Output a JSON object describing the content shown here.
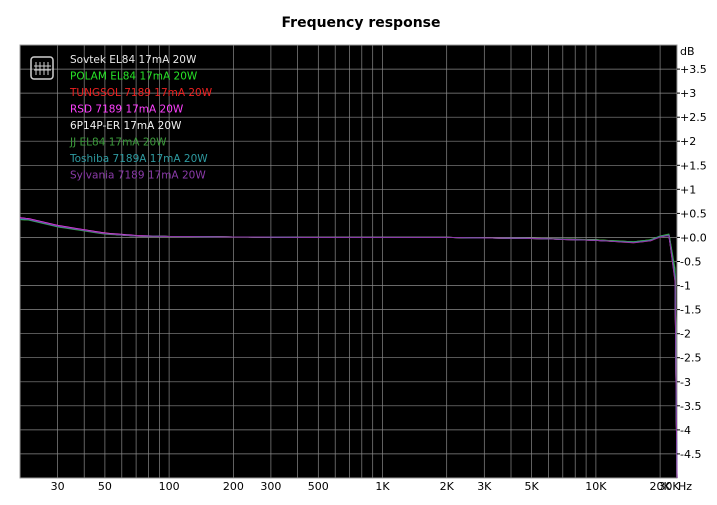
{
  "chart_data": {
    "type": "line",
    "title": "Frequency response",
    "xunit": "Hz",
    "yunit": "dB",
    "xscale": "log",
    "xlim": [
      20,
      24000
    ],
    "ylim": [
      -5,
      4
    ],
    "grid": true,
    "background": "#000000",
    "grid_color": "#8a8a8a",
    "legend_position": "top-left",
    "legend_icon": "spectrum-icon",
    "xticks": [
      {
        "value": 30,
        "label": "30"
      },
      {
        "value": 50,
        "label": "50"
      },
      {
        "value": 100,
        "label": "100"
      },
      {
        "value": 200,
        "label": "200"
      },
      {
        "value": 300,
        "label": "300"
      },
      {
        "value": 500,
        "label": "500"
      },
      {
        "value": 1000,
        "label": "1K"
      },
      {
        "value": 2000,
        "label": "2K"
      },
      {
        "value": 3000,
        "label": "3K"
      },
      {
        "value": 5000,
        "label": "5K"
      },
      {
        "value": 10000,
        "label": "10K"
      },
      {
        "value": 20000,
        "label": "20K"
      },
      {
        "value": 30000,
        "label": "30K"
      }
    ],
    "yticks": [
      {
        "value": 3.5,
        "label": "+3.5"
      },
      {
        "value": 3,
        "label": "+3"
      },
      {
        "value": 2.5,
        "label": "+2.5"
      },
      {
        "value": 2,
        "label": "+2"
      },
      {
        "value": 1.5,
        "label": "+1.5"
      },
      {
        "value": 1,
        "label": "+1"
      },
      {
        "value": 0.5,
        "label": "+0.5"
      },
      {
        "value": 0,
        "label": "+0.0"
      },
      {
        "value": -0.5,
        "label": "-0.5"
      },
      {
        "value": -1,
        "label": "-1"
      },
      {
        "value": -1.5,
        "label": "-1.5"
      },
      {
        "value": -2,
        "label": "-2"
      },
      {
        "value": -2.5,
        "label": "-2.5"
      },
      {
        "value": -3,
        "label": "-3"
      },
      {
        "value": -3.5,
        "label": "-3.5"
      },
      {
        "value": -4,
        "label": "-4"
      },
      {
        "value": -4.5,
        "label": "-4.5"
      }
    ],
    "series": [
      {
        "name": "Sovtek EL84 17mA 20W",
        "color": "#e8e8e8",
        "x": [
          20,
          22,
          30,
          50,
          70,
          100,
          200,
          500,
          1000,
          2000,
          3000,
          5000,
          10000,
          15000,
          18000,
          20000,
          22000,
          23500,
          24000
        ],
        "y": [
          0.4,
          0.38,
          0.24,
          0.08,
          0.03,
          0.02,
          0.01,
          0.0,
          0.0,
          0.0,
          -0.01,
          -0.02,
          -0.06,
          -0.1,
          -0.06,
          0.02,
          0.05,
          -0.8,
          -5.0
        ]
      },
      {
        "name": "POLAM EL84 17mA 20W",
        "color": "#27e427",
        "x": [
          20,
          22,
          30,
          50,
          70,
          100,
          200,
          500,
          1000,
          2000,
          3000,
          5000,
          10000,
          15000,
          18000,
          20000,
          22000,
          23500,
          24000
        ],
        "y": [
          0.38,
          0.37,
          0.23,
          0.08,
          0.03,
          0.02,
          0.01,
          0.0,
          0.0,
          0.0,
          -0.01,
          -0.02,
          -0.05,
          -0.09,
          -0.05,
          0.02,
          0.06,
          -0.7,
          -5.0
        ]
      },
      {
        "name": "TUNGSOL 7189 17mA 20W",
        "color": "#ee2020",
        "x": [
          20,
          22,
          30,
          50,
          70,
          100,
          200,
          500,
          1000,
          2000,
          3000,
          5000,
          10000,
          15000,
          18000,
          20000,
          22000,
          23500,
          24000
        ],
        "y": [
          0.39,
          0.38,
          0.24,
          0.09,
          0.03,
          0.02,
          0.01,
          0.0,
          0.0,
          0.0,
          -0.01,
          -0.02,
          -0.06,
          -0.11,
          -0.07,
          0.01,
          0.05,
          -0.9,
          -5.0
        ]
      },
      {
        "name": "RSD 7189 17mA 20W",
        "color": "#ff40ff",
        "x": [
          20,
          22,
          30,
          50,
          70,
          100,
          200,
          500,
          1000,
          2000,
          3000,
          5000,
          10000,
          15000,
          18000,
          20000,
          22000,
          23500,
          24000
        ],
        "y": [
          0.41,
          0.39,
          0.25,
          0.09,
          0.04,
          0.02,
          0.01,
          0.0,
          0.0,
          0.0,
          -0.01,
          -0.02,
          -0.06,
          -0.1,
          -0.06,
          0.02,
          0.04,
          -0.85,
          -5.0
        ]
      },
      {
        "name": "6P14P-ER 17mA 20W",
        "color": "#f2f2f2",
        "x": [
          20,
          22,
          30,
          50,
          70,
          100,
          200,
          500,
          1000,
          2000,
          3000,
          5000,
          10000,
          15000,
          18000,
          20000,
          22000,
          23500,
          24000
        ],
        "y": [
          0.39,
          0.37,
          0.23,
          0.08,
          0.03,
          0.02,
          0.01,
          0.0,
          0.0,
          0.0,
          -0.01,
          -0.02,
          -0.05,
          -0.1,
          -0.06,
          0.02,
          0.06,
          -0.75,
          -5.0
        ]
      },
      {
        "name": "JJ EL84 17mA 20W",
        "color": "#3a9a3a",
        "x": [
          20,
          22,
          30,
          50,
          70,
          100,
          200,
          500,
          1000,
          2000,
          3000,
          5000,
          10000,
          15000,
          18000,
          20000,
          22000,
          23500,
          24000
        ],
        "y": [
          0.37,
          0.36,
          0.22,
          0.07,
          0.03,
          0.02,
          0.01,
          0.0,
          0.0,
          0.0,
          -0.01,
          -0.02,
          -0.05,
          -0.09,
          -0.05,
          0.03,
          0.07,
          -0.65,
          -5.0
        ]
      },
      {
        "name": "Toshiba 7189A 17mA 20W",
        "color": "#2e9aa0",
        "x": [
          20,
          22,
          30,
          50,
          70,
          100,
          200,
          500,
          1000,
          2000,
          3000,
          5000,
          10000,
          15000,
          18000,
          20000,
          22000,
          23500,
          24000
        ],
        "y": [
          0.38,
          0.37,
          0.23,
          0.08,
          0.03,
          0.02,
          0.01,
          0.0,
          0.0,
          0.0,
          -0.01,
          -0.02,
          -0.06,
          -0.1,
          -0.06,
          0.02,
          0.05,
          -0.8,
          -5.0
        ]
      },
      {
        "name": "Sylvania 7189 17mA 20W",
        "color": "#8a3aa8",
        "x": [
          20,
          22,
          30,
          50,
          70,
          100,
          200,
          500,
          1000,
          2000,
          3000,
          5000,
          10000,
          15000,
          18000,
          20000,
          22000,
          23500,
          24000
        ],
        "y": [
          0.4,
          0.38,
          0.24,
          0.08,
          0.03,
          0.02,
          0.01,
          0.0,
          0.0,
          0.0,
          -0.01,
          -0.02,
          -0.06,
          -0.11,
          -0.07,
          0.01,
          0.04,
          -0.9,
          -5.0
        ]
      }
    ]
  }
}
